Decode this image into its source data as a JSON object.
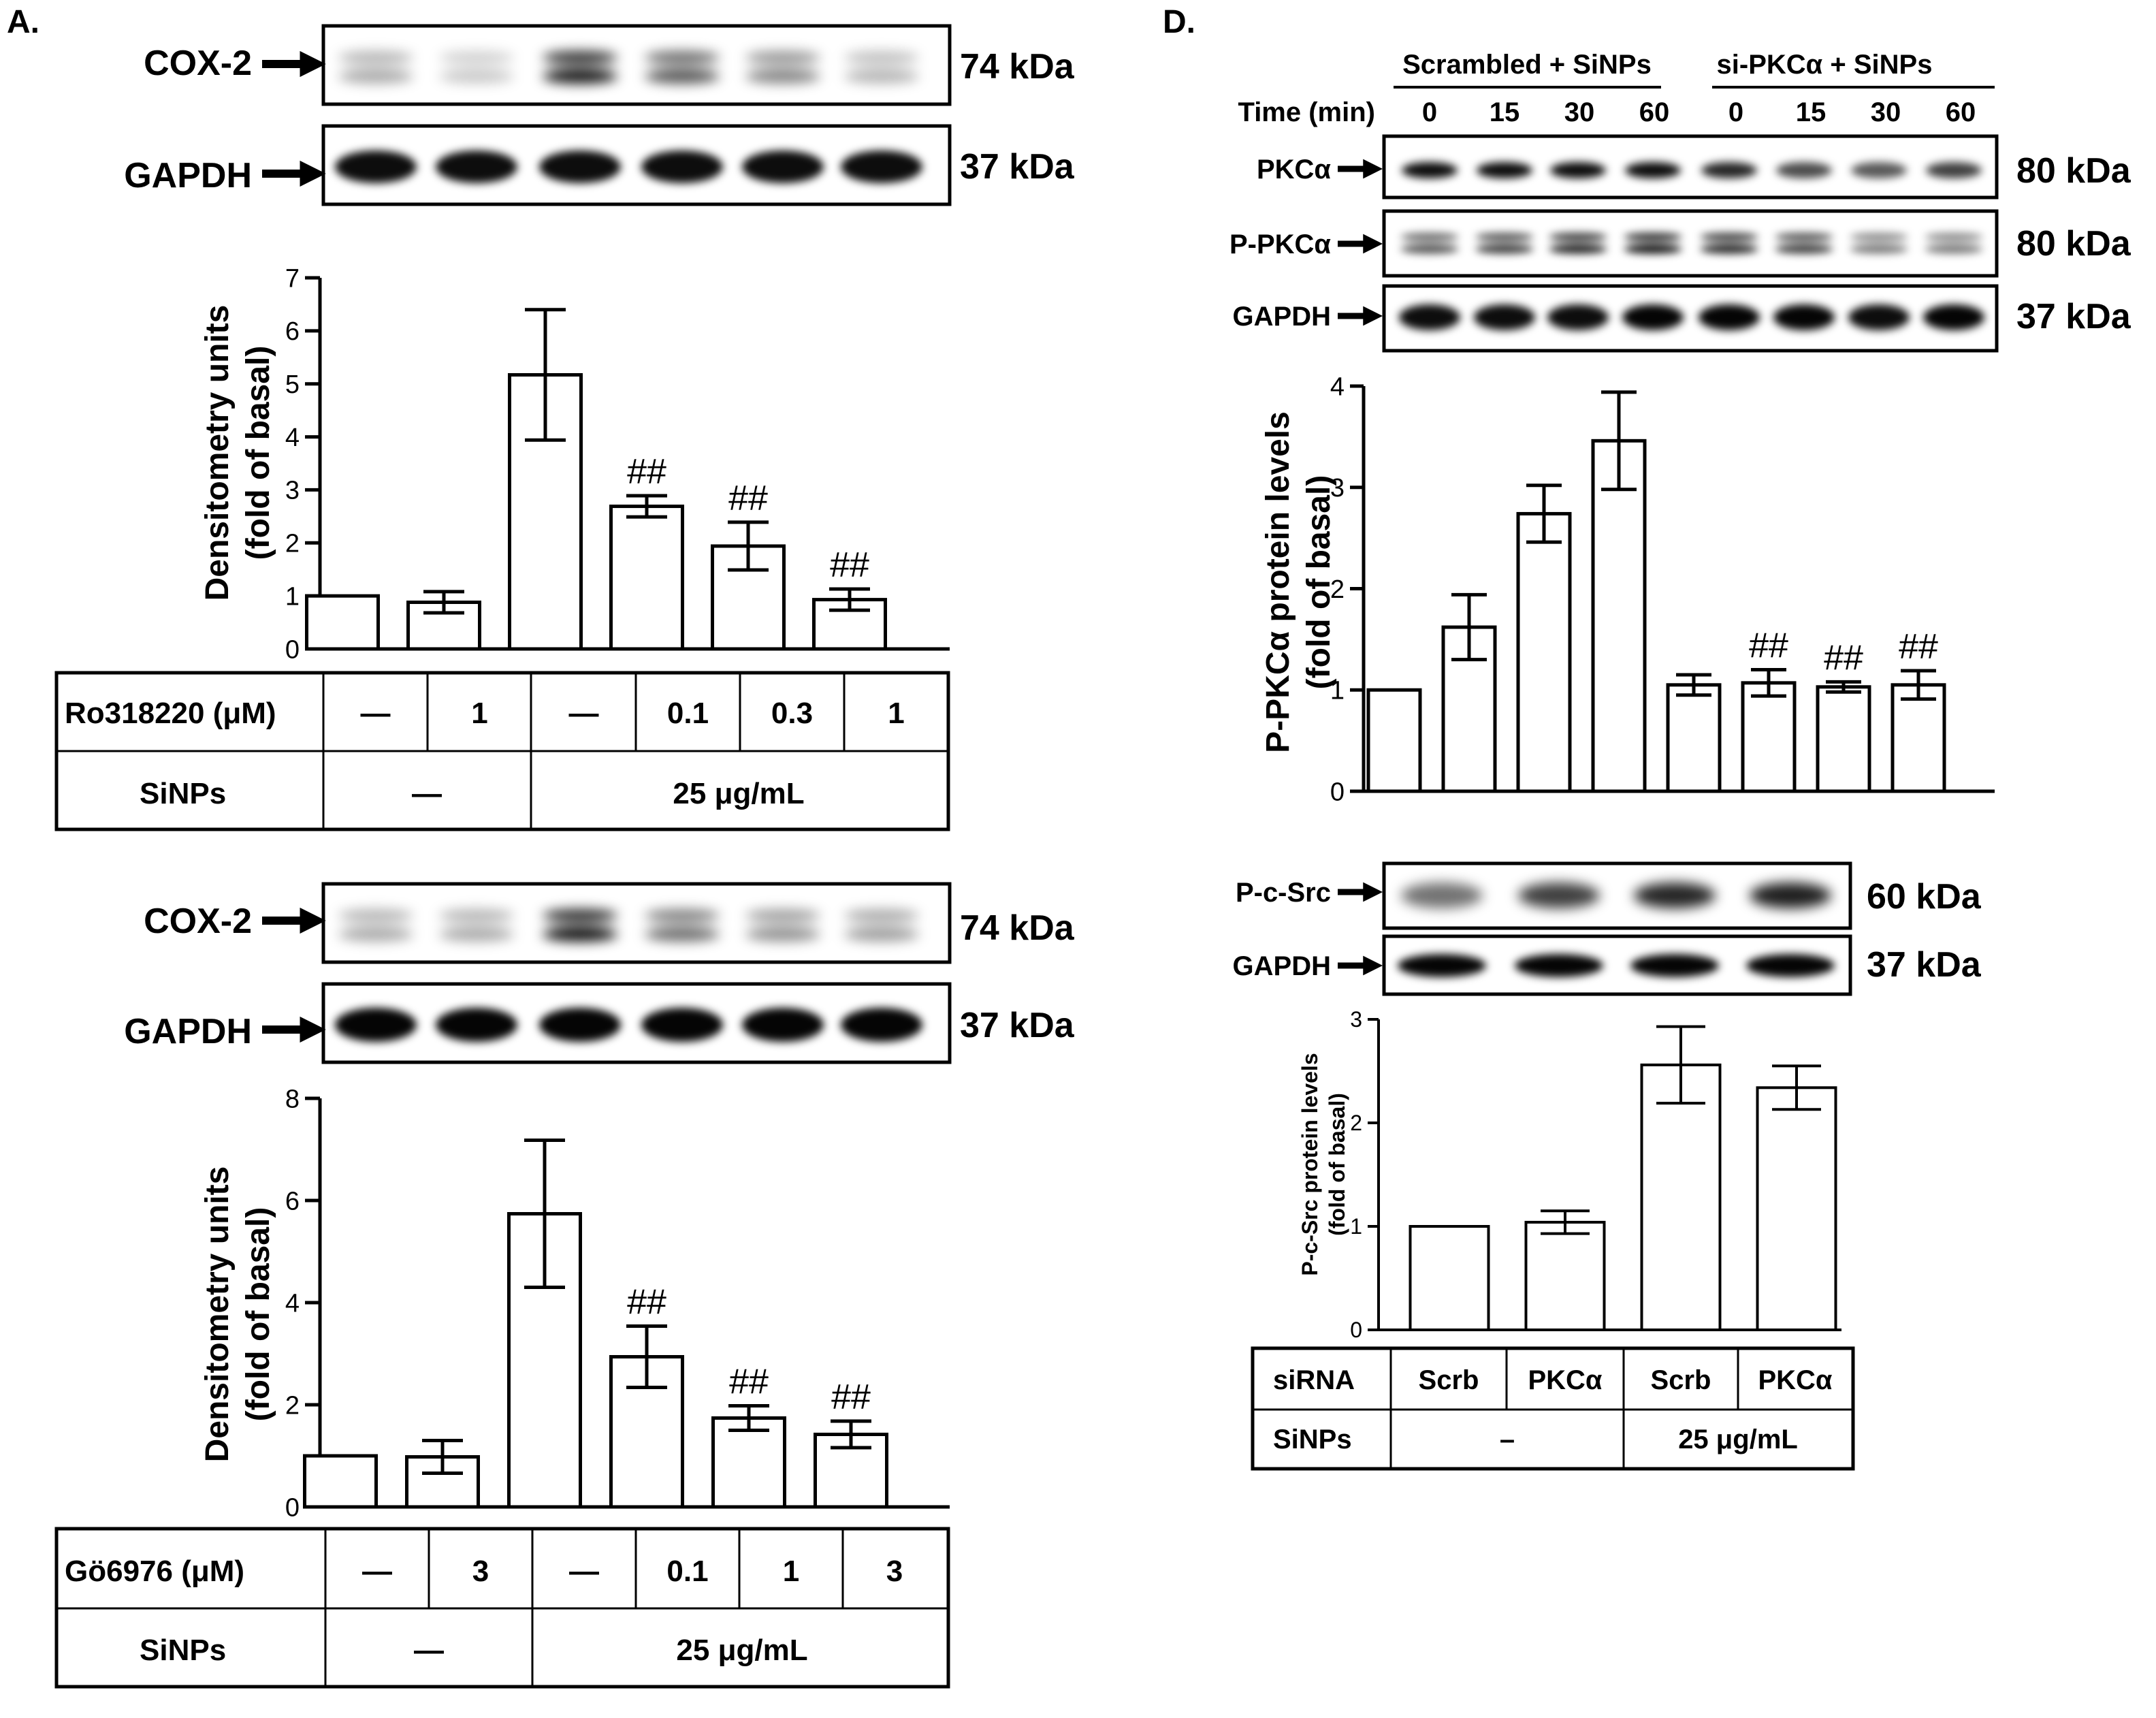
{
  "panelA": {
    "label": "A.",
    "top": {
      "blot": {
        "bands": [
          {
            "name": "COX-2",
            "kda": "74 kDa"
          },
          {
            "name": "GAPDH",
            "kda": "37 kDa"
          }
        ]
      },
      "chart_data": {
        "type": "bar",
        "ylabel_line1": "Densitometry units",
        "ylabel_line2": "(fold of basal)",
        "ylim": [
          0,
          7
        ],
        "yticks": [
          "0",
          "1",
          "2",
          "3",
          "4",
          "5",
          "6",
          "7"
        ],
        "values": [
          1.0,
          0.88,
          5.17,
          2.69,
          1.94,
          0.93
        ],
        "errors": [
          0,
          0.2,
          1.23,
          0.2,
          0.45,
          0.2
        ],
        "annotations": [
          "",
          "",
          "",
          "##",
          "##",
          "##"
        ]
      },
      "table": {
        "row1_label": "Ro318220 (μM)",
        "row1_values": [
          "—",
          "1",
          "—",
          "0.1",
          "0.3",
          "1"
        ],
        "row2_label": "SiNPs",
        "row2_values": [
          "—",
          "25 μg/mL"
        ]
      }
    },
    "bottom": {
      "blot": {
        "bands": [
          {
            "name": "COX-2",
            "kda": "74 kDa"
          },
          {
            "name": "GAPDH",
            "kda": "37 kDa"
          }
        ]
      },
      "chart_data": {
        "type": "bar",
        "ylabel_line1": "Densitometry units",
        "ylabel_line2": "(fold of basal)",
        "ylim": [
          0,
          8
        ],
        "yticks": [
          "0",
          "2",
          "4",
          "6",
          "8"
        ],
        "values": [
          1.0,
          0.98,
          5.74,
          2.94,
          1.74,
          1.42
        ],
        "errors": [
          0,
          0.32,
          1.44,
          0.6,
          0.24,
          0.26
        ],
        "annotations": [
          "",
          "",
          "",
          "##",
          "##",
          "##"
        ]
      },
      "table": {
        "row1_label": "Gö6976 (μM)",
        "row1_values": [
          "—",
          "3",
          "—",
          "0.1",
          "1",
          "3"
        ],
        "row2_label": "SiNPs",
        "row2_values": [
          "—",
          "25 μg/mL"
        ]
      }
    }
  },
  "panelD": {
    "label": "D.",
    "top": {
      "groups": [
        "Scrambled + SiNPs",
        "si-PKCα + SiNPs"
      ],
      "time_label": "Time (min)",
      "times": [
        "0",
        "15",
        "30",
        "60",
        "0",
        "15",
        "30",
        "60"
      ],
      "blot": {
        "bands": [
          {
            "name": "PKCα",
            "kda": "80 kDa"
          },
          {
            "name": "P-PKCα",
            "kda": "80 kDa"
          },
          {
            "name": "GAPDH",
            "kda": "37 kDa"
          }
        ]
      },
      "chart_data": {
        "type": "bar",
        "ylabel_line1": "P-PKCα protein levels",
        "ylabel_line2": "(fold of basal)",
        "ylim": [
          0,
          4
        ],
        "yticks": [
          "0",
          "1",
          "2",
          "3",
          "4"
        ],
        "values": [
          1.0,
          1.62,
          2.74,
          3.46,
          1.05,
          1.07,
          1.03,
          1.05
        ],
        "errors": [
          0,
          0.32,
          0.28,
          0.48,
          0.1,
          0.13,
          0.05,
          0.14
        ],
        "annotations": [
          "",
          "",
          "",
          "",
          "",
          "##",
          "##",
          "##"
        ]
      }
    },
    "bottom": {
      "blot": {
        "bands": [
          {
            "name": "P-c-Src",
            "kda": "60 kDa"
          },
          {
            "name": "GAPDH",
            "kda": "37 kDa"
          }
        ]
      },
      "chart_data": {
        "type": "bar",
        "ylabel_line1": "P-c-Src protein levels",
        "ylabel_line2": "(fold of basal)",
        "ylim": [
          0,
          3
        ],
        "yticks": [
          "0",
          "1",
          "2",
          "3"
        ],
        "values": [
          1.0,
          1.04,
          2.56,
          2.34
        ],
        "errors": [
          0,
          0.11,
          0.37,
          0.21
        ],
        "annotations": [
          "",
          "",
          "",
          ""
        ]
      },
      "table": {
        "row1_label": "siRNA",
        "row1_values": [
          "Scrb",
          "PKCα",
          "Scrb",
          "PKCα"
        ],
        "row2_label": "SiNPs",
        "row2_values": [
          "–",
          "25 μg/mL"
        ]
      }
    }
  }
}
